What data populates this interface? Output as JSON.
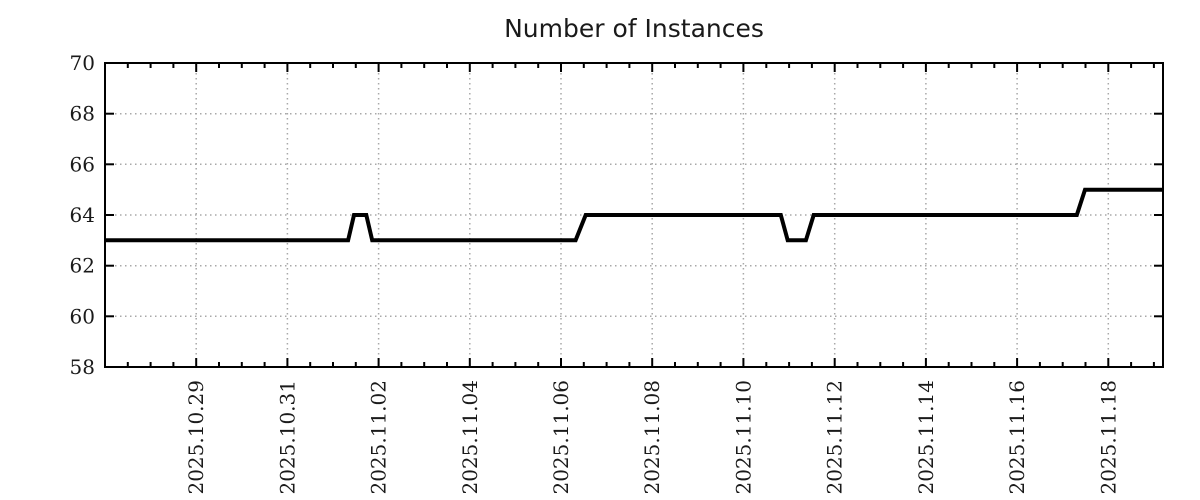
{
  "page": {
    "background": "#ffffff"
  },
  "colors": {
    "line": "#000000",
    "axis": "#000000",
    "grid": "#a8a8a8",
    "text": "#1a1a1a",
    "background": "#ffffff"
  },
  "chart_data": {
    "type": "line",
    "title": "Number of Instances",
    "xlabel": "",
    "ylabel": "",
    "grid": {
      "show": true,
      "style": "dotted",
      "color": "#a8a8a8"
    },
    "legend": {
      "show": false
    },
    "x_axis": {
      "unit": "days since 2025.10.27",
      "min": 0,
      "max": 23.2,
      "minor_tick_step": 0.5,
      "major_ticks": [
        {
          "t": 2,
          "label": "2025.10.29"
        },
        {
          "t": 4,
          "label": "2025.10.31"
        },
        {
          "t": 6,
          "label": "2025.11.02"
        },
        {
          "t": 8,
          "label": "2025.11.04"
        },
        {
          "t": 10,
          "label": "2025.11.06"
        },
        {
          "t": 12,
          "label": "2025.11.08"
        },
        {
          "t": 14,
          "label": "2025.11.10"
        },
        {
          "t": 16,
          "label": "2025.11.12"
        },
        {
          "t": 18,
          "label": "2025.11.14"
        },
        {
          "t": 20,
          "label": "2025.11.16"
        },
        {
          "t": 22,
          "label": "2025.11.18"
        }
      ]
    },
    "y_axis": {
      "min": 58,
      "max": 70,
      "tick_step": 2,
      "ticks": [
        58,
        60,
        62,
        64,
        66,
        68,
        70
      ]
    },
    "series": [
      {
        "name": "instances",
        "color": "#000000",
        "points": [
          [
            0,
            63
          ],
          [
            5.33,
            63
          ],
          [
            5.46,
            64
          ],
          [
            5.73,
            64
          ],
          [
            5.86,
            63
          ],
          [
            10.32,
            63
          ],
          [
            10.54,
            64
          ],
          [
            14.82,
            64
          ],
          [
            14.97,
            63
          ],
          [
            15.37,
            63
          ],
          [
            15.54,
            64
          ],
          [
            21.31,
            64
          ],
          [
            21.49,
            65
          ],
          [
            23.2,
            65
          ]
        ]
      }
    ]
  }
}
